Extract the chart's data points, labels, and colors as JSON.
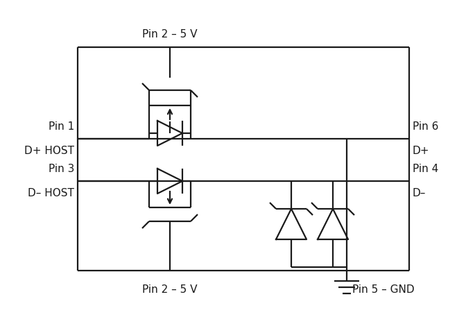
{
  "bg_color": "#ffffff",
  "line_color": "#1a1a1a",
  "text_color": "#1a1a1a",
  "fig_width": 6.59,
  "fig_height": 4.67,
  "dpi": 100,
  "labels": {
    "pin2_5v_top": "Pin 2 – 5 V",
    "pin2_5v_bot": "Pin 2 – 5 V",
    "pin1": "Pin 1",
    "dplus_host": "D+ HOST",
    "pin3": "Pin 3",
    "dminus_host": "D– HOST",
    "pin6": "Pin 6",
    "dplus": "D+",
    "pin4": "Pin 4",
    "dminus": "D–",
    "pin5_gnd": "Pin 5 – GND"
  }
}
